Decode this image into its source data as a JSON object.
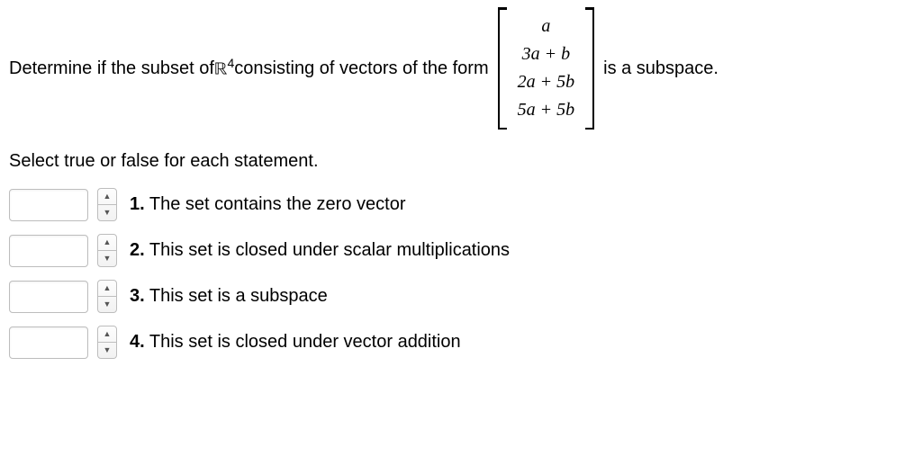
{
  "question": {
    "prefix": "Determine if the subset of ",
    "space_symbol": "ℝ",
    "space_exponent": "4",
    "mid": " consisting of vectors of the form ",
    "matrix_rows": [
      "a",
      "3a + b",
      "2a + 5b",
      "5a + 5b"
    ],
    "suffix": " is a subspace."
  },
  "instruction": "Select true or false for each statement.",
  "statements": [
    {
      "num": "1.",
      "text": "The set contains the zero vector"
    },
    {
      "num": "2.",
      "text": "This set is closed under scalar multiplications"
    },
    {
      "num": "3.",
      "text": "This set is a subspace"
    },
    {
      "num": "4.",
      "text": "This set is closed under vector addition"
    }
  ],
  "stepper": {
    "up": "▲",
    "down": "▼"
  }
}
